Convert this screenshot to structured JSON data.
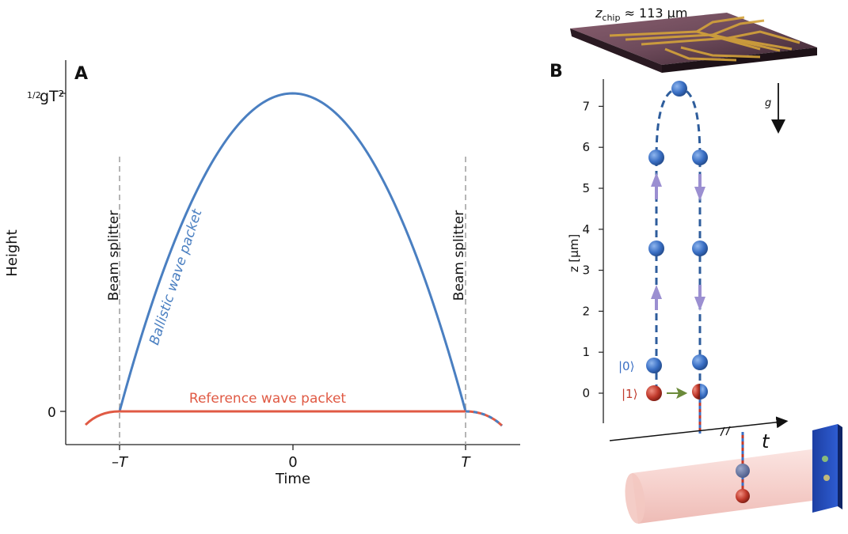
{
  "panel_a": {
    "letter": "A",
    "ylabel": "Height",
    "xlabel": "Time",
    "ytick_top_frac": "1/2",
    "ytick_top": "gT²",
    "ytick_zero": "0",
    "xtick_left": "–T",
    "xtick_mid": "0",
    "xtick_right": "T",
    "splitter_left": "Beam splitter",
    "splitter_right": "Beam splitter",
    "ballistic_label": "Ballistic wave packet",
    "reference_label": "Reference wave packet",
    "colors": {
      "ballistic": "#4a7fc1",
      "reference": "#e05a44",
      "splitter": "#b5b5b5"
    }
  },
  "panel_b": {
    "letter": "B",
    "chip_label_var": "z",
    "chip_label_sub": "chip",
    "chip_label_rest": " ≈ 113 µm",
    "zlabel": "z [µm]",
    "g_label": "g",
    "t_label": "t",
    "state0": "|0⟩",
    "state1": "|1⟩",
    "zticks": [
      "0",
      "1",
      "2",
      "3",
      "4",
      "5",
      "6",
      "7"
    ],
    "colors": {
      "ball_blue": "#3a6fc4",
      "ball_red": "#c0392b",
      "arrow": "#9b8fd1",
      "path": "#2e5d9c"
    }
  },
  "chart_data": {
    "type": "line",
    "title": "",
    "xlabel": "Time",
    "ylabel": "Height",
    "x_ticks": [
      "–T",
      "0",
      "T"
    ],
    "y_ticks": [
      "0",
      "½gT²"
    ],
    "series": [
      {
        "name": "Ballistic wave packet",
        "shape": "parabola from -T to T, peak 1/2 g T^2 at t=0"
      },
      {
        "name": "Reference wave packet",
        "shape": "constant height 0 from -T to T"
      }
    ],
    "vertical_markers": [
      {
        "x": "-T",
        "label": "Beam splitter"
      },
      {
        "x": "T",
        "label": "Beam splitter"
      }
    ]
  }
}
